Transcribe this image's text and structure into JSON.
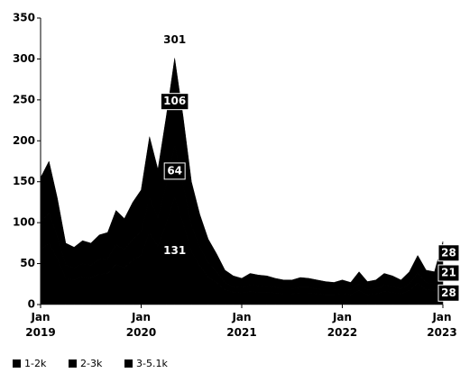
{
  "chart_data": {
    "type": "area",
    "categories": [
      "Jan 2019",
      null,
      null,
      null,
      null,
      null,
      null,
      null,
      null,
      null,
      null,
      null,
      "Jan 2020",
      null,
      null,
      null,
      null,
      null,
      null,
      null,
      null,
      null,
      null,
      null,
      "Jan 2021",
      null,
      null,
      null,
      null,
      null,
      null,
      null,
      null,
      null,
      null,
      null,
      "Jan 2022",
      null,
      null,
      null,
      null,
      null,
      null,
      null,
      null,
      null,
      null,
      null,
      "Jan 2023"
    ],
    "series": [
      {
        "name": "1-2k",
        "color": "#000000",
        "values": [
          67,
          75,
          56,
          32,
          30,
          34,
          32,
          37,
          38,
          49,
          45,
          54,
          60,
          88,
          71,
          99,
          131,
          99,
          65,
          47,
          34,
          27,
          18,
          15,
          14,
          16,
          15,
          15,
          14,
          13,
          13,
          14,
          14,
          13,
          12,
          12,
          13,
          12,
          17,
          12,
          13,
          16,
          15,
          13,
          17,
          26,
          18,
          17,
          28
        ],
        "value_labels": [
          null,
          null,
          null,
          null,
          null,
          null,
          null,
          null,
          null,
          null,
          null,
          null,
          null,
          null,
          null,
          null,
          "131",
          null,
          null,
          null,
          null,
          null,
          null,
          null,
          null,
          null,
          null,
          null,
          null,
          null,
          null,
          null,
          null,
          null,
          null,
          null,
          null,
          null,
          null,
          null,
          null,
          null,
          null,
          null,
          null,
          null,
          null,
          null,
          "28"
        ]
      },
      {
        "name": "2-3k",
        "color": "#000000",
        "values": [
          33,
          37,
          27,
          16,
          15,
          16,
          16,
          18,
          18,
          24,
          22,
          26,
          29,
          43,
          35,
          48,
          64,
          48,
          32,
          23,
          17,
          13,
          9,
          7,
          7,
          8,
          8,
          7,
          7,
          6,
          6,
          7,
          7,
          6,
          6,
          6,
          6,
          6,
          8,
          6,
          6,
          8,
          7,
          6,
          8,
          13,
          9,
          8,
          21
        ],
        "value_labels": [
          null,
          null,
          null,
          null,
          null,
          null,
          null,
          null,
          null,
          null,
          null,
          null,
          null,
          null,
          null,
          null,
          "64",
          null,
          null,
          null,
          null,
          null,
          null,
          null,
          null,
          null,
          null,
          null,
          null,
          null,
          null,
          null,
          null,
          null,
          null,
          null,
          null,
          null,
          null,
          null,
          null,
          null,
          null,
          null,
          null,
          null,
          null,
          null,
          "21"
        ]
      },
      {
        "name": "3-5.1k",
        "color": "#000000",
        "values": [
          55,
          63,
          47,
          27,
          25,
          28,
          27,
          30,
          32,
          42,
          38,
          45,
          51,
          74,
          59,
          83,
          106,
          83,
          53,
          40,
          29,
          22,
          15,
          13,
          11,
          14,
          13,
          13,
          11,
          11,
          11,
          12,
          11,
          11,
          10,
          9,
          11,
          9,
          15,
          10,
          11,
          14,
          13,
          11,
          15,
          21,
          15,
          15,
          28
        ],
        "value_labels": [
          null,
          null,
          null,
          null,
          null,
          null,
          null,
          null,
          null,
          null,
          null,
          null,
          null,
          null,
          null,
          null,
          "106",
          null,
          null,
          null,
          null,
          null,
          null,
          null,
          null,
          null,
          null,
          null,
          null,
          null,
          null,
          null,
          null,
          null,
          null,
          null,
          null,
          null,
          null,
          null,
          null,
          null,
          null,
          null,
          null,
          null,
          null,
          null,
          "28"
        ]
      }
    ],
    "total_labels": [
      null,
      null,
      null,
      null,
      null,
      null,
      null,
      null,
      null,
      null,
      null,
      null,
      null,
      null,
      null,
      null,
      301,
      null,
      null,
      null,
      null,
      null,
      null,
      null,
      null,
      null,
      null,
      null,
      null,
      null,
      null,
      null,
      null,
      null,
      null,
      null,
      null,
      null,
      null,
      null,
      null,
      null,
      null,
      null,
      null,
      null,
      null,
      null,
      null
    ],
    "ylim": [
      0,
      350
    ],
    "yticks": [
      0,
      50,
      100,
      150,
      200,
      250,
      300,
      350
    ],
    "stacked": true,
    "grid": false,
    "legend": "bottom"
  }
}
